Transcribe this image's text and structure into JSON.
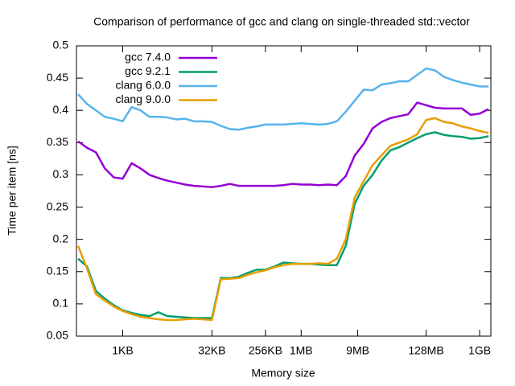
{
  "chart_data": {
    "type": "line",
    "title": "Comparison of performance of gcc and clang on single-threaded std::vector",
    "x_label": "Memory size",
    "y_label": "Time per item [ns]",
    "x": [
      181,
      256,
      362,
      512,
      724,
      1024,
      1448,
      2048,
      2896,
      4096,
      5793,
      8192,
      11585,
      16384,
      23170,
      32768,
      46341,
      65536,
      92682,
      131072,
      185364,
      262144,
      370728,
      524288,
      741455,
      1048576,
      1482910,
      2097152,
      2965821,
      4194304,
      5931642,
      8388608,
      11863283,
      16777216,
      23726566,
      33554432,
      47453133,
      67108864,
      94906266,
      134217728,
      189812531,
      268435456,
      379625062,
      536870912,
      759250125,
      1073741824,
      1518500250
    ],
    "series": [
      {
        "name": "gcc 7.4.0",
        "color": "#9400d3",
        "values": [
          0.352,
          0.342,
          0.335,
          0.31,
          0.296,
          0.294,
          0.318,
          0.31,
          0.3,
          0.295,
          0.291,
          0.288,
          0.285,
          0.283,
          0.282,
          0.281,
          0.283,
          0.286,
          0.283,
          0.283,
          0.283,
          0.283,
          0.283,
          0.284,
          0.286,
          0.285,
          0.285,
          0.284,
          0.285,
          0.284,
          0.298,
          0.33,
          0.348,
          0.372,
          0.382,
          0.388,
          0.391,
          0.394,
          0.412,
          0.408,
          0.404,
          0.403,
          0.403,
          0.403,
          0.393,
          0.395,
          0.402
        ]
      },
      {
        "name": "gcc 9.2.1",
        "color": "#009e73",
        "values": [
          0.17,
          0.158,
          0.12,
          0.108,
          0.098,
          0.09,
          0.086,
          0.083,
          0.081,
          0.087,
          0.081,
          0.08,
          0.079,
          0.078,
          0.078,
          0.078,
          0.14,
          0.14,
          0.142,
          0.148,
          0.153,
          0.153,
          0.158,
          0.164,
          0.163,
          0.162,
          0.162,
          0.161,
          0.16,
          0.16,
          0.19,
          0.255,
          0.283,
          0.3,
          0.322,
          0.338,
          0.343,
          0.35,
          0.357,
          0.363,
          0.366,
          0.362,
          0.36,
          0.359,
          0.356,
          0.357,
          0.36
        ]
      },
      {
        "name": "clang 6.0.0",
        "color": "#56b4e9",
        "values": [
          0.425,
          0.41,
          0.4,
          0.39,
          0.387,
          0.383,
          0.405,
          0.4,
          0.39,
          0.39,
          0.389,
          0.386,
          0.387,
          0.383,
          0.383,
          0.382,
          0.376,
          0.371,
          0.37,
          0.373,
          0.375,
          0.378,
          0.378,
          0.378,
          0.379,
          0.38,
          0.379,
          0.378,
          0.379,
          0.383,
          0.398,
          0.415,
          0.432,
          0.431,
          0.44,
          0.442,
          0.445,
          0.445,
          0.455,
          0.465,
          0.462,
          0.452,
          0.447,
          0.443,
          0.44,
          0.437,
          0.437
        ]
      },
      {
        "name": "clang 9.0.0",
        "color": "#e69f00",
        "values": [
          0.19,
          0.155,
          0.115,
          0.105,
          0.096,
          0.089,
          0.084,
          0.08,
          0.078,
          0.076,
          0.075,
          0.075,
          0.076,
          0.077,
          0.076,
          0.075,
          0.138,
          0.139,
          0.14,
          0.145,
          0.149,
          0.152,
          0.157,
          0.16,
          0.162,
          0.162,
          0.162,
          0.163,
          0.162,
          0.17,
          0.2,
          0.265,
          0.29,
          0.315,
          0.33,
          0.345,
          0.35,
          0.355,
          0.363,
          0.385,
          0.388,
          0.382,
          0.38,
          0.375,
          0.372,
          0.368,
          0.365
        ]
      }
    ],
    "x_log": true,
    "xlim": [
      170,
      1660000000
    ],
    "xticks": [
      {
        "value": 1024,
        "label": "1KB"
      },
      {
        "value": 32768,
        "label": "32KB"
      },
      {
        "value": 262144,
        "label": "256KB"
      },
      {
        "value": 1048576,
        "label": "1MB"
      },
      {
        "value": 9437184,
        "label": "9MB"
      },
      {
        "value": 134217728,
        "label": "128MB"
      },
      {
        "value": 1073741824,
        "label": "1GB"
      }
    ],
    "ylim": [
      0.05,
      0.5
    ],
    "yticks": [
      0.05,
      0.1,
      0.15,
      0.2,
      0.25,
      0.3,
      0.35,
      0.4,
      0.45,
      0.5
    ],
    "legend": "top-left"
  }
}
